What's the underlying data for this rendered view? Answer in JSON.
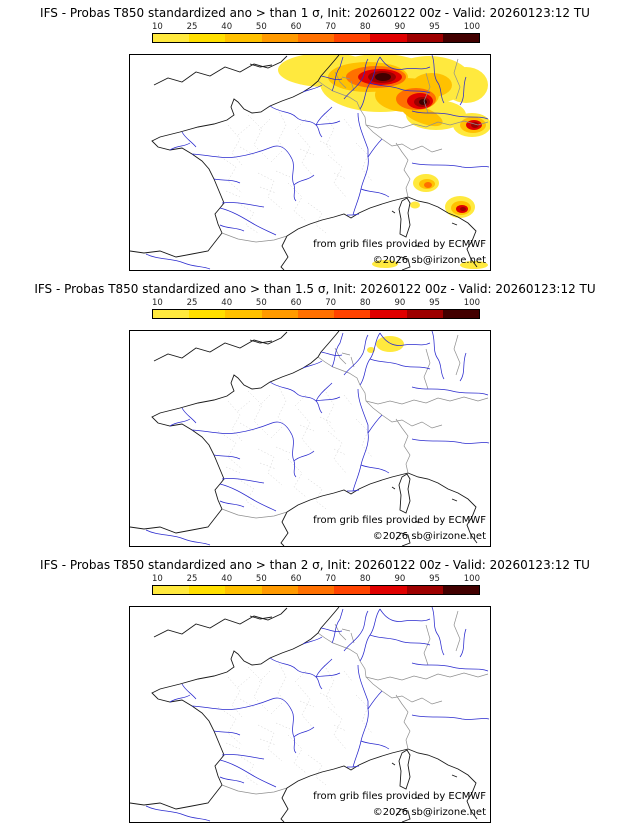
{
  "colorbar": {
    "ticks": [
      "10",
      "25",
      "40",
      "50",
      "60",
      "70",
      "80",
      "90",
      "95",
      "100"
    ],
    "segment_colors": [
      "#ffe93e",
      "#ffdf00",
      "#ffc100",
      "#ff9a00",
      "#ff7000",
      "#ff4300",
      "#e00000",
      "#9d0000",
      "#420000"
    ]
  },
  "panels": [
    {
      "title": "IFS - Probas T850  standardized ano > than 1 σ, Init: 20260122 00z - Valid: 20260123:12 TU",
      "sigma_threshold": "1",
      "attribution_line1": "from grib files provided by ECMWF",
      "attribution_line2": "©2026 sb@irizone.net",
      "anomaly_present": true,
      "anomaly_note": "large high-probability area (cores 95-100) over Belgium / western Germany, secondary maxima at the eastern map edge, spots over NW Italy and the Ligurian-Tuscan coast, small patches at the bottom edge"
    },
    {
      "title": "IFS - Probas T850  standardized ano > than 1.5 σ, Init: 20260122 00z - Valid: 20260123:12 TU",
      "sigma_threshold": "1.5",
      "attribution_line1": "from grib files provided by ECMWF",
      "attribution_line2": "©2026 sb@irizone.net",
      "anomaly_present": true,
      "anomaly_note": "small 10-25 patch over western Germany near the top edge"
    },
    {
      "title": "IFS - Probas T850  standardized ano > than 2 σ, Init: 20260122 00z - Valid: 20260123:12 TU",
      "sigma_threshold": "2",
      "attribution_line1": "from grib files provided by ECMWF",
      "attribution_line2": "©2026 sb@irizone.net",
      "anomaly_present": false,
      "anomaly_note": ""
    }
  ]
}
